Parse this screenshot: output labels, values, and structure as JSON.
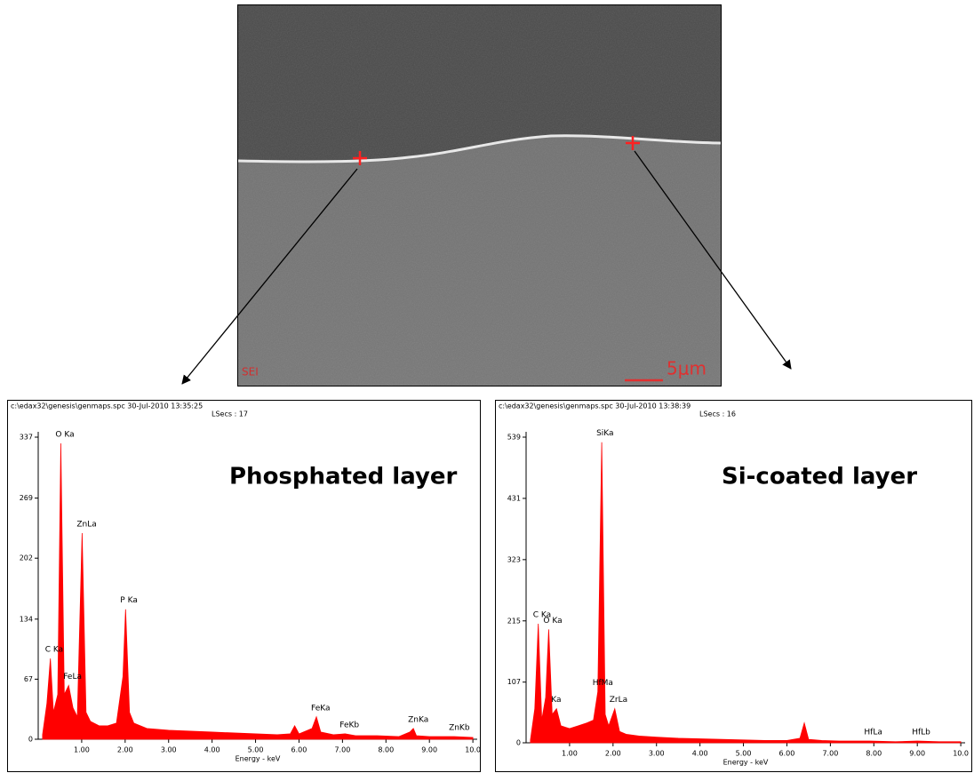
{
  "sem_image": {
    "detector": "SEI",
    "scale_bar": "5μm"
  },
  "chart_data": [
    {
      "type": "area",
      "title": "Phosphated layer",
      "header": [
        "c:\\edax32\\genesis\\genmaps.spc   30-Jul-2010 13:35:25",
        "LSecs : 17"
      ],
      "x_label": "Energy - keV",
      "color": "#ff0000",
      "x": [
        0.1,
        0.2,
        0.28,
        0.35,
        0.45,
        0.52,
        0.6,
        0.7,
        0.8,
        0.9,
        1.01,
        1.1,
        1.2,
        1.4,
        1.6,
        1.8,
        1.95,
        2.01,
        2.1,
        2.2,
        2.5,
        3.0,
        3.5,
        4.0,
        4.5,
        5.0,
        5.5,
        5.8,
        5.9,
        6.0,
        6.3,
        6.4,
        6.5,
        6.8,
        7.06,
        7.3,
        7.8,
        8.3,
        8.55,
        8.63,
        8.7,
        9.0,
        9.57,
        10.0
      ],
      "values": [
        5,
        40,
        90,
        30,
        50,
        330,
        50,
        60,
        35,
        25,
        230,
        30,
        20,
        15,
        15,
        18,
        70,
        145,
        30,
        18,
        12,
        10,
        9,
        8,
        7,
        6,
        5,
        6,
        15,
        6,
        12,
        25,
        8,
        5,
        6,
        4,
        4,
        3,
        8,
        12,
        4,
        3,
        3,
        2
      ],
      "annotations": [
        {
          "text": "C Ka",
          "x": 0.28
        },
        {
          "text": "O Ka",
          "x": 0.52
        },
        {
          "text": "FeLa",
          "x": 0.7
        },
        {
          "text": "ZnLa",
          "x": 1.01
        },
        {
          "text": "P Ka",
          "x": 2.01
        },
        {
          "text": "FeKa",
          "x": 6.4
        },
        {
          "text": "FeKb",
          "x": 7.06
        },
        {
          "text": "ZnKa",
          "x": 8.63
        },
        {
          "text": "ZnKb",
          "x": 9.57
        }
      ],
      "xlim": [
        0,
        10.1
      ],
      "ylim": [
        0,
        337
      ],
      "xticks": [
        {
          "value": 1,
          "label": "1.00"
        },
        {
          "value": 2,
          "label": "2.00"
        },
        {
          "value": 3,
          "label": "3.00"
        },
        {
          "value": 4,
          "label": "4.00"
        },
        {
          "value": 5,
          "label": "5.00"
        },
        {
          "value": 6,
          "label": "6.00"
        },
        {
          "value": 7,
          "label": "7.00"
        },
        {
          "value": 8,
          "label": "8.00"
        },
        {
          "value": 9,
          "label": "9.00"
        },
        {
          "value": 10,
          "label": "10.0"
        }
      ],
      "yticks": [
        0,
        67,
        134,
        202,
        269,
        337
      ]
    },
    {
      "type": "area",
      "title": "Si-coated layer",
      "header": [
        "c:\\edax32\\genesis\\genmaps.spc   30-Jul-2010 13:38:39",
        "LSecs : 16"
      ],
      "x_label": "Energy - keV",
      "color": "#ff0000",
      "x": [
        0.1,
        0.2,
        0.28,
        0.36,
        0.45,
        0.52,
        0.6,
        0.7,
        0.8,
        1.0,
        1.2,
        1.4,
        1.55,
        1.65,
        1.74,
        1.82,
        1.9,
        2.04,
        2.15,
        2.3,
        2.6,
        3.0,
        3.5,
        4.0,
        4.5,
        5.0,
        5.5,
        6.0,
        6.3,
        6.4,
        6.5,
        6.8,
        7.2,
        7.9,
        8.5,
        9.0,
        9.5,
        10.0
      ],
      "values": [
        5,
        60,
        210,
        40,
        80,
        200,
        50,
        60,
        30,
        25,
        30,
        35,
        40,
        90,
        530,
        50,
        30,
        60,
        20,
        15,
        12,
        10,
        8,
        7,
        6,
        5,
        4,
        4,
        8,
        35,
        6,
        4,
        3,
        3,
        2,
        3,
        2,
        2
      ],
      "annotations": [
        {
          "text": "C Ka",
          "x": 0.28
        },
        {
          "text": "O Ka",
          "x": 0.52
        },
        {
          "text": "Ka",
          "x": 0.7
        },
        {
          "text": "HfMa",
          "x": 1.65
        },
        {
          "text": "SiKa",
          "x": 1.74
        },
        {
          "text": "ZrLa",
          "x": 2.04
        },
        {
          "text": "HfLa",
          "x": 7.9
        },
        {
          "text": "HfLb",
          "x": 9.0
        }
      ],
      "xlim": [
        0,
        10.1
      ],
      "ylim": [
        0,
        539
      ],
      "xticks": [
        {
          "value": 1,
          "label": "1.00"
        },
        {
          "value": 2,
          "label": "2.00"
        },
        {
          "value": 3,
          "label": "3.00"
        },
        {
          "value": 4,
          "label": "4.00"
        },
        {
          "value": 5,
          "label": "5.00"
        },
        {
          "value": 6,
          "label": "6.00"
        },
        {
          "value": 7,
          "label": "7.00"
        },
        {
          "value": 8,
          "label": "8.00"
        },
        {
          "value": 9,
          "label": "9.00"
        },
        {
          "value": 10,
          "label": "10.0"
        }
      ],
      "yticks": [
        0,
        107,
        215,
        323,
        431,
        539
      ]
    }
  ]
}
